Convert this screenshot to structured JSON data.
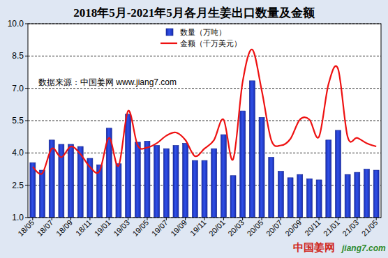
{
  "chart_data": {
    "type": "bar",
    "title": "2018年5月-2021年5月各月生姜出口数量及金额",
    "categories": [
      "18/05",
      null,
      "18/07",
      null,
      "18/09",
      null,
      "18/11",
      null,
      "19/01",
      null,
      "19/03",
      null,
      "19/05",
      null,
      "19/07",
      null,
      "19/09",
      null,
      "19/11",
      null,
      "20/01",
      null,
      "20/03",
      null,
      "20/05",
      null,
      "20/07",
      null,
      "20/09",
      null,
      "20/11",
      null,
      "21/01",
      null,
      "21/03",
      null,
      "21/05"
    ],
    "series": [
      {
        "name": "数量（万吨）",
        "type": "bar",
        "color": "#3050e8",
        "values": [
          3.55,
          3.2,
          4.6,
          4.4,
          4.4,
          4.3,
          3.75,
          3.45,
          5.15,
          3.5,
          5.8,
          4.5,
          4.55,
          4.35,
          4.2,
          4.35,
          4.45,
          3.65,
          3.65,
          4.2,
          4.85,
          2.95,
          5.95,
          7.35,
          5.65,
          3.8,
          3.15,
          2.85,
          3.0,
          2.8,
          2.75,
          4.6,
          5.05,
          3.0,
          3.1,
          3.25,
          3.2
        ]
      },
      {
        "name": "金额（千万美元）",
        "type": "line",
        "color": "#ee1111",
        "values": [
          3.35,
          3.05,
          4.2,
          3.8,
          4.3,
          3.95,
          3.35,
          3.15,
          4.7,
          3.4,
          5.95,
          4.35,
          4.25,
          4.45,
          4.8,
          4.95,
          4.6,
          3.85,
          4.2,
          4.6,
          5.55,
          3.7,
          7.3,
          8.8,
          6.9,
          4.6,
          4.35,
          4.65,
          5.55,
          5.55,
          4.75,
          7.2,
          7.9,
          4.75,
          4.7,
          4.45,
          4.3
        ]
      }
    ],
    "ylim": [
      1,
      10
    ],
    "yticks": [
      {
        "value": 1,
        "label": "1.0"
      },
      2.5,
      {
        "value": 4,
        "label": "4.0"
      },
      5.5,
      {
        "value": 7,
        "label": "7.0"
      },
      8.5,
      {
        "value": 10,
        "label": "10.0"
      }
    ],
    "grid": true,
    "legend": "top",
    "annotations": [
      "数据来源：中国姜网 www.jiang7.com",
      "中国姜网",
      "jiang7.com"
    ]
  }
}
